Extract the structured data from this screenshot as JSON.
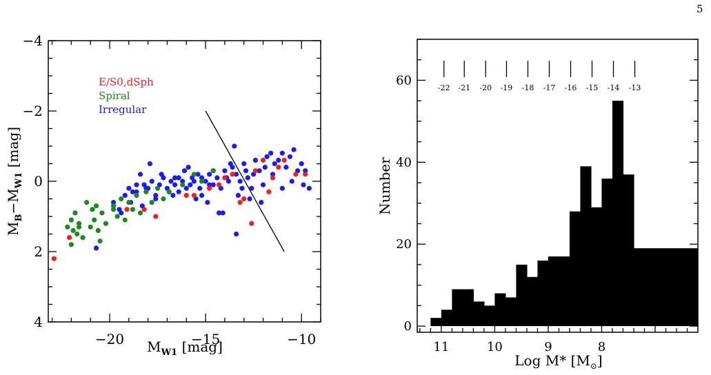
{
  "page_number": "5",
  "chart_data": [
    {
      "type": "scatter",
      "xlabel_main": "M",
      "xlabel_sub": "W1",
      "xlabel_unit": "[mag]",
      "ylabel_main": "M",
      "ylabel_sub1": "B",
      "ylabel_sep": "−M",
      "ylabel_sub2": "W1",
      "ylabel_unit": "[mag]",
      "xlim": [
        -23.2,
        -9.0
      ],
      "ylim": [
        4,
        -4
      ],
      "x_ticks": [
        -20,
        -15,
        -10
      ],
      "x_tick_labels": [
        "−20",
        "−15",
        "−10"
      ],
      "y_ticks": [
        -4,
        -2,
        0,
        2,
        4
      ],
      "y_tick_labels": [
        "−4",
        "−2",
        "0",
        "2",
        "4"
      ],
      "legend": [
        {
          "label": "E/S0,dSph",
          "color": "#ff1a1a"
        },
        {
          "label": "Spiral",
          "color": "#1a8a1a"
        },
        {
          "label": "Irregular",
          "color": "#1a1aff"
        }
      ],
      "legend_position": "top-left",
      "line": {
        "x": [
          -15.0,
          -10.9
        ],
        "y": [
          -2.0,
          2.0
        ]
      },
      "series": [
        {
          "name": "Irregular",
          "color": "#1a1aff",
          "points": [
            [
              -19.8,
              0.6
            ],
            [
              -19.5,
              0.8
            ],
            [
              -19.2,
              0.4
            ],
            [
              -19.0,
              0.2
            ],
            [
              -18.8,
              0.3
            ],
            [
              -18.6,
              0.1
            ],
            [
              -18.4,
              -0.2
            ],
            [
              -18.2,
              0.1
            ],
            [
              -18.0,
              0.2
            ],
            [
              -17.8,
              0.0
            ],
            [
              -17.6,
              0.4
            ],
            [
              -17.4,
              0.1
            ],
            [
              -17.2,
              -0.1
            ],
            [
              -17.0,
              0.2
            ],
            [
              -16.8,
              0.0
            ],
            [
              -16.6,
              0.1
            ],
            [
              -16.4,
              -0.1
            ],
            [
              -16.2,
              0.0
            ],
            [
              -16.0,
              0.2
            ],
            [
              -15.8,
              0.1
            ],
            [
              -15.6,
              0.0
            ],
            [
              -15.4,
              -0.2
            ],
            [
              -15.2,
              -0.1
            ],
            [
              -15.0,
              0.0
            ],
            [
              -14.8,
              -0.2
            ],
            [
              -14.6,
              0.1
            ],
            [
              -14.4,
              -0.1
            ],
            [
              -14.2,
              0.2
            ],
            [
              -14.0,
              -0.3
            ],
            [
              -13.8,
              0.0
            ],
            [
              -13.6,
              -0.4
            ],
            [
              -13.4,
              -0.2
            ],
            [
              -13.2,
              0.0
            ],
            [
              -13.0,
              -0.5
            ],
            [
              -12.8,
              -0.1
            ],
            [
              -12.6,
              0.2
            ],
            [
              -12.4,
              -0.6
            ],
            [
              -12.2,
              -0.3
            ],
            [
              -12.0,
              0.1
            ],
            [
              -11.8,
              -0.7
            ],
            [
              -11.6,
              -0.8
            ],
            [
              -11.4,
              -0.5
            ],
            [
              -11.2,
              -0.6
            ],
            [
              -11.0,
              -0.8
            ],
            [
              -10.8,
              -0.4
            ],
            [
              -10.6,
              -0.7
            ],
            [
              -10.4,
              -0.9
            ],
            [
              -10.2,
              -0.3
            ],
            [
              -10.0,
              -0.5
            ],
            [
              -9.8,
              -0.3
            ],
            [
              -9.6,
              0.2
            ],
            [
              -18.6,
              0.3
            ],
            [
              -17.9,
              -0.5
            ],
            [
              -16.9,
              0.3
            ],
            [
              -16.1,
              -0.3
            ],
            [
              -15.5,
              0.5
            ],
            [
              -14.9,
              0.6
            ],
            [
              -14.3,
              0.9
            ],
            [
              -13.7,
              -0.5
            ],
            [
              -12.9,
              -0.3
            ],
            [
              -20.7,
              1.9
            ],
            [
              -18.3,
              0.7
            ],
            [
              -17.3,
              -0.2
            ],
            [
              -15.9,
              -0.4
            ],
            [
              -14.6,
              -0.3
            ],
            [
              -13.5,
              -1.0
            ],
            [
              -13.4,
              1.5
            ],
            [
              -12.7,
              0.5
            ],
            [
              -11.5,
              -0.2
            ],
            [
              -14.1,
              0.9
            ],
            [
              -15.2,
              0.4
            ],
            [
              -16.7,
              0.4
            ],
            [
              -17.6,
              0.5
            ],
            [
              -18.9,
              0.6
            ],
            [
              -19.4,
              0.9
            ],
            [
              -13.1,
              0.2
            ],
            [
              -12.1,
              0.6
            ],
            [
              -11.0,
              0.2
            ],
            [
              -10.5,
              0.0
            ],
            [
              -9.9,
              0.1
            ],
            [
              -16.4,
              0.3
            ],
            [
              -15.7,
              -0.1
            ],
            [
              -14.8,
              0.1
            ],
            [
              -13.9,
              -0.1
            ],
            [
              -13.3,
              0.4
            ],
            [
              -12.5,
              -0.2
            ],
            [
              -11.9,
              -0.4
            ],
            [
              -18.1,
              0.2
            ],
            [
              -16.6,
              -0.1
            ],
            [
              -15.3,
              0.2
            ]
          ]
        },
        {
          "name": "Spiral",
          "color": "#1a8a1a",
          "points": [
            [
              -22.2,
              1.3
            ],
            [
              -22.0,
              1.1
            ],
            [
              -21.9,
              1.4
            ],
            [
              -21.8,
              0.9
            ],
            [
              -21.7,
              1.5
            ],
            [
              -21.6,
              1.2
            ],
            [
              -21.4,
              1.6
            ],
            [
              -21.2,
              0.6
            ],
            [
              -21.0,
              1.3
            ],
            [
              -20.9,
              0.8
            ],
            [
              -20.8,
              1.1
            ],
            [
              -20.7,
              0.7
            ],
            [
              -20.6,
              1.4
            ],
            [
              -20.5,
              1.7
            ],
            [
              -20.4,
              0.9
            ],
            [
              -20.2,
              1.2
            ],
            [
              -19.8,
              0.7
            ],
            [
              -19.6,
              1.0
            ],
            [
              -19.4,
              0.5
            ],
            [
              -19.2,
              1.1
            ],
            [
              -19.0,
              0.6
            ],
            [
              -18.8,
              0.8
            ],
            [
              -18.6,
              0.4
            ],
            [
              -18.4,
              0.9
            ],
            [
              -18.1,
              0.3
            ],
            [
              -17.8,
              0.6
            ],
            [
              -17.5,
              0.2
            ],
            [
              -17.2,
              0.5
            ],
            [
              -16.9,
              0.3
            ],
            [
              -16.2,
              0.1
            ],
            [
              -15.6,
              -0.2
            ],
            [
              -15.2,
              0.0
            ],
            [
              -14.6,
              -0.3
            ],
            [
              -22.0,
              1.8
            ],
            [
              -21.6,
              1.3
            ],
            [
              -19.8,
              0.8
            ]
          ]
        },
        {
          "name": "E/S0,dSph",
          "color": "#ff1a1a",
          "points": [
            [
              -22.9,
              2.2
            ],
            [
              -22.1,
              1.6
            ],
            [
              -19.1,
              0.8
            ],
            [
              -18.2,
              0.8
            ],
            [
              -17.6,
              1.0
            ],
            [
              -16.0,
              0.4
            ],
            [
              -15.6,
              0.4
            ],
            [
              -14.8,
              0.2
            ],
            [
              -14.3,
              0.1
            ],
            [
              -13.6,
              -0.2
            ],
            [
              -13.2,
              0.6
            ],
            [
              -12.6,
              1.2
            ],
            [
              -12.0,
              -0.6
            ],
            [
              -11.7,
              0.3
            ],
            [
              -11.5,
              -0.1
            ],
            [
              -11.2,
              -0.4
            ],
            [
              -10.9,
              -0.6
            ],
            [
              -10.3,
              -0.2
            ],
            [
              -9.8,
              -0.2
            ],
            [
              -14.0,
              -0.1
            ],
            [
              -13.0,
              0.5
            ],
            [
              -12.4,
              -0.3
            ]
          ]
        }
      ]
    },
    {
      "type": "bar",
      "xlabel_main": "Log M* [M",
      "xlabel_sym": "⊙",
      "xlabel_end": "]",
      "ylabel": "Number",
      "xlim": [
        11.45,
        6.2
      ],
      "ylim": [
        -1.5,
        70
      ],
      "x_ticks": [
        11,
        10,
        9,
        8
      ],
      "x_tick_labels": [
        "11",
        "10",
        "9",
        "8"
      ],
      "y_ticks": [
        0,
        20,
        40,
        60
      ],
      "y_tick_labels": [
        "0",
        "20",
        "40",
        "60"
      ],
      "bin_width": 0.2,
      "bins": [
        {
          "left": 11.2,
          "value": 2
        },
        {
          "left": 11.0,
          "value": 4
        },
        {
          "left": 10.8,
          "value": 9
        },
        {
          "left": 10.6,
          "value": 9
        },
        {
          "left": 10.4,
          "value": 6
        },
        {
          "left": 10.2,
          "value": 5
        },
        {
          "left": 10.0,
          "value": 8
        },
        {
          "left": 9.8,
          "value": 7
        },
        {
          "left": 9.6,
          "value": 15
        },
        {
          "left": 9.4,
          "value": 12
        },
        {
          "left": 9.2,
          "value": 16
        },
        {
          "left": 9.0,
          "value": 17
        },
        {
          "left": 8.8,
          "value": 17
        },
        {
          "left": 8.6,
          "value": 28
        },
        {
          "left": 8.4,
          "value": 39
        },
        {
          "left": 8.2,
          "value": 29
        },
        {
          "left": 8.0,
          "value": 36
        },
        {
          "left": 7.8,
          "value": 55
        },
        {
          "left": 7.6,
          "value": 37
        },
        {
          "left": 7.4,
          "value": 19
        },
        {
          "left": 7.2,
          "value": 19
        },
        {
          "left": 7.0,
          "value": 19
        },
        {
          "left": 6.8,
          "value": 19
        },
        {
          "left": 6.6,
          "value": 19
        },
        {
          "left": 6.4,
          "value": 19
        }
      ],
      "top_axis_ticks": [
        {
          "x": 10.95,
          "label": "-22"
        },
        {
          "x": 10.57,
          "label": "-21"
        },
        {
          "x": 10.17,
          "label": "-20"
        },
        {
          "x": 9.78,
          "label": "-19"
        },
        {
          "x": 9.38,
          "label": "-18"
        },
        {
          "x": 8.98,
          "label": "-17"
        },
        {
          "x": 8.58,
          "label": "-16"
        },
        {
          "x": 8.18,
          "label": "-15"
        },
        {
          "x": 7.78,
          "label": "-14"
        },
        {
          "x": 7.38,
          "label": "-13"
        }
      ]
    }
  ]
}
